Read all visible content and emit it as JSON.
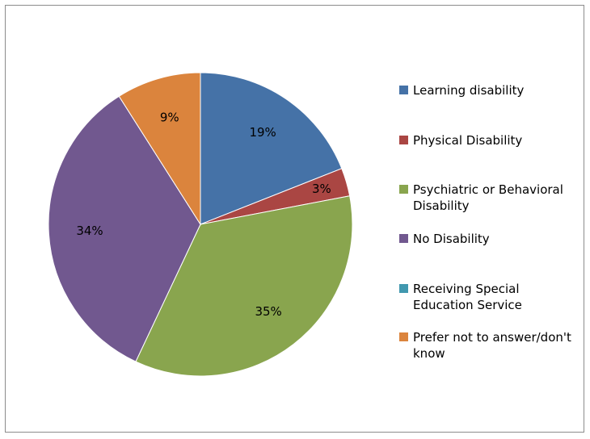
{
  "chart_data": {
    "type": "pie",
    "categories": [
      "Learning disability",
      "Physical Disability",
      "Psychiatric or Behavioral Disability",
      "No Disability",
      "Receiving Special Education Service",
      "Prefer not to answer/don't know"
    ],
    "values": [
      19,
      3,
      35,
      34,
      0,
      9
    ],
    "labels": [
      "19%",
      "3%",
      "35%",
      "34%",
      "",
      "9%"
    ],
    "colors": [
      "#4572A7",
      "#AA4643",
      "#89A54E",
      "#71588F",
      "#4198AF",
      "#DB843D"
    ],
    "legend_position": "right",
    "start_angle": "top, clockwise"
  }
}
